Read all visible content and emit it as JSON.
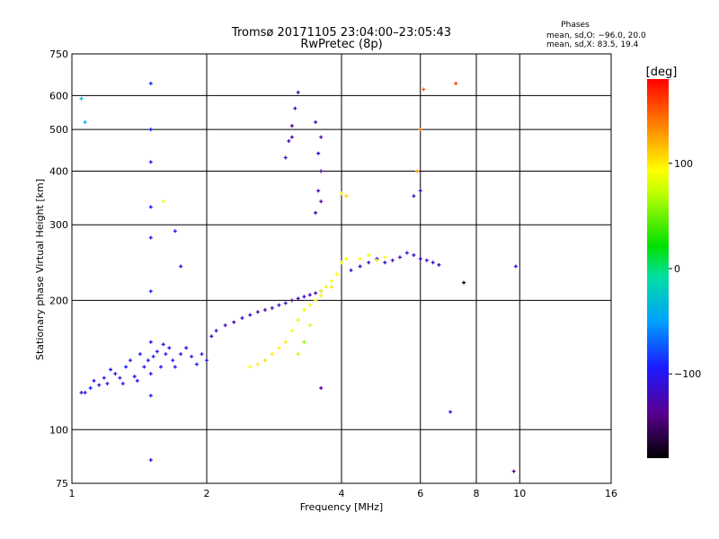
{
  "chart_data": {
    "type": "scatter",
    "title": "Tromsø 20171105 23:04:00–23:05:43",
    "subtitle": "RwPretec (8p)",
    "xlabel": "Frequency [MHz]",
    "ylabel": "Stationary phase Virtual Height [km]",
    "x_scale": "log",
    "y_scale": "log",
    "xlim": [
      1,
      16
    ],
    "ylim": [
      75,
      750
    ],
    "x_ticks": [
      1,
      2,
      4,
      6,
      8,
      10,
      16
    ],
    "y_ticks": [
      75,
      100,
      200,
      300,
      400,
      500,
      600,
      750
    ],
    "x_gridlines": [
      2,
      4,
      6,
      8,
      10
    ],
    "y_gridlines": [
      100,
      200,
      300,
      400,
      500,
      600
    ],
    "grid": true,
    "phase_box": {
      "title": "Phases",
      "line1": "mean, sd,O: −96.0, 20.0",
      "line2": "mean, sd,X:  83.5, 19.4"
    },
    "colorbar": {
      "label": "[deg]",
      "range": [
        -180,
        180
      ],
      "ticks": [
        100,
        0,
        -100
      ],
      "tick_labels": [
        "100",
        "0",
        "−100"
      ]
    },
    "series": [
      {
        "marker": "+",
        "note": "phase in degrees (color mapped)",
        "points": [
          [
            1.05,
            122,
            -110
          ],
          [
            1.07,
            122,
            -100
          ],
          [
            1.1,
            125,
            -90
          ],
          [
            1.12,
            130,
            -100
          ],
          [
            1.15,
            127,
            -110
          ],
          [
            1.18,
            132,
            -100
          ],
          [
            1.2,
            128,
            -105
          ],
          [
            1.22,
            138,
            -95
          ],
          [
            1.25,
            135,
            -100
          ],
          [
            1.28,
            132,
            -110
          ],
          [
            1.3,
            128,
            -100
          ],
          [
            1.32,
            140,
            -95
          ],
          [
            1.35,
            145,
            -100
          ],
          [
            1.38,
            133,
            -110
          ],
          [
            1.4,
            130,
            -100
          ],
          [
            1.42,
            150,
            -95
          ],
          [
            1.45,
            140,
            -100
          ],
          [
            1.48,
            145,
            -105
          ],
          [
            1.5,
            135,
            -100
          ],
          [
            1.52,
            148,
            -95
          ],
          [
            1.55,
            152,
            -100
          ],
          [
            1.58,
            140,
            -110
          ],
          [
            1.6,
            158,
            -100
          ],
          [
            1.62,
            150,
            -95
          ],
          [
            1.65,
            155,
            -100
          ],
          [
            1.68,
            145,
            -105
          ],
          [
            1.7,
            140,
            -100
          ],
          [
            1.75,
            150,
            -100
          ],
          [
            1.8,
            155,
            -110
          ],
          [
            1.85,
            148,
            -100
          ],
          [
            1.9,
            142,
            -95
          ],
          [
            1.95,
            150,
            -100
          ],
          [
            2.0,
            145,
            -105
          ],
          [
            2.05,
            165,
            -100
          ],
          [
            2.1,
            170,
            -110
          ],
          [
            2.2,
            175,
            -120
          ],
          [
            2.3,
            178,
            -130
          ],
          [
            2.4,
            182,
            -120
          ],
          [
            2.5,
            185,
            -110
          ],
          [
            2.6,
            188,
            -120
          ],
          [
            2.7,
            190,
            -130
          ],
          [
            2.8,
            192,
            -120
          ],
          [
            2.9,
            195,
            -110
          ],
          [
            3.0,
            197,
            -120
          ],
          [
            3.1,
            200,
            -130
          ],
          [
            3.2,
            202,
            -120
          ],
          [
            3.3,
            204,
            -115
          ],
          [
            3.4,
            206,
            -120
          ],
          [
            3.5,
            208,
            -125
          ],
          [
            3.6,
            210,
            -115
          ],
          [
            2.5,
            140,
            95
          ],
          [
            2.6,
            142,
            100
          ],
          [
            2.7,
            145,
            105
          ],
          [
            2.8,
            150,
            100
          ],
          [
            2.9,
            155,
            95
          ],
          [
            3.0,
            160,
            100
          ],
          [
            3.1,
            170,
            90
          ],
          [
            3.2,
            180,
            100
          ],
          [
            3.3,
            190,
            85
          ],
          [
            3.4,
            195,
            90
          ],
          [
            3.5,
            200,
            95
          ],
          [
            3.6,
            210,
            85
          ],
          [
            3.7,
            215,
            80
          ],
          [
            3.8,
            222,
            90
          ],
          [
            3.9,
            230,
            95
          ],
          [
            4.0,
            245,
            85
          ],
          [
            4.1,
            250,
            90
          ],
          [
            3.2,
            150,
            70
          ],
          [
            3.3,
            160,
            60
          ],
          [
            3.4,
            175,
            80
          ],
          [
            3.6,
            205,
            100
          ],
          [
            3.8,
            215,
            105
          ],
          [
            3.0,
            430,
            -120
          ],
          [
            3.05,
            470,
            -125
          ],
          [
            3.1,
            510,
            -130
          ],
          [
            3.15,
            560,
            -120
          ],
          [
            3.2,
            610,
            -125
          ],
          [
            3.1,
            480,
            -120
          ],
          [
            3.5,
            320,
            -120
          ],
          [
            3.55,
            360,
            -125
          ],
          [
            3.6,
            400,
            -130
          ],
          [
            3.55,
            440,
            -120
          ],
          [
            3.6,
            480,
            -125
          ],
          [
            3.5,
            520,
            -120
          ],
          [
            3.6,
            340,
            -130
          ],
          [
            4.0,
            355,
            100
          ],
          [
            4.1,
            350,
            110
          ],
          [
            4.2,
            235,
            -115
          ],
          [
            4.4,
            240,
            -110
          ],
          [
            4.6,
            245,
            -120
          ],
          [
            4.8,
            250,
            -115
          ],
          [
            5.0,
            245,
            -110
          ],
          [
            5.2,
            248,
            -115
          ],
          [
            5.4,
            252,
            -120
          ],
          [
            5.6,
            258,
            -110
          ],
          [
            5.8,
            255,
            -115
          ],
          [
            6.0,
            250,
            -120
          ],
          [
            6.2,
            248,
            -115
          ],
          [
            6.4,
            245,
            -110
          ],
          [
            6.6,
            242,
            -120
          ],
          [
            4.4,
            250,
            95
          ],
          [
            4.6,
            255,
            90
          ],
          [
            4.8,
            248,
            100
          ],
          [
            5.0,
            252,
            95
          ],
          [
            5.8,
            350,
            -120
          ],
          [
            6.0,
            360,
            -110
          ],
          [
            1.5,
            640,
            -90
          ],
          [
            1.5,
            500,
            -95
          ],
          [
            1.5,
            420,
            -100
          ],
          [
            1.5,
            330,
            -95
          ],
          [
            1.5,
            280,
            -100
          ],
          [
            1.5,
            210,
            -95
          ],
          [
            1.5,
            160,
            -100
          ],
          [
            1.5,
            120,
            -95
          ],
          [
            1.5,
            85,
            -100
          ],
          [
            1.05,
            590,
            -30
          ],
          [
            1.07,
            520,
            -40
          ],
          [
            1.6,
            340,
            90
          ],
          [
            1.7,
            290,
            -100
          ],
          [
            1.75,
            240,
            -110
          ],
          [
            5.9,
            400,
            130
          ],
          [
            6.0,
            500,
            140
          ],
          [
            6.1,
            620,
            150
          ],
          [
            7.2,
            640,
            160
          ],
          [
            7.0,
            110,
            -110
          ],
          [
            9.7,
            80,
            -140
          ],
          [
            9.8,
            240,
            -100
          ],
          [
            7.5,
            220,
            -180
          ],
          [
            3.6,
            125,
            -130
          ]
        ]
      }
    ]
  }
}
